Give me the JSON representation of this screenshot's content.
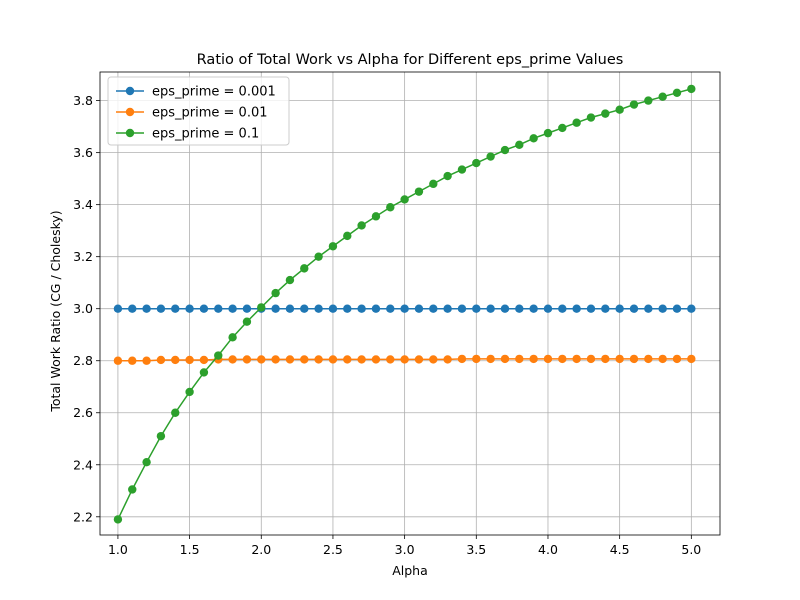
{
  "chart_data": {
    "type": "line",
    "title": "Ratio of Total Work vs Alpha for Different eps_prime Values",
    "xlabel": "Alpha",
    "ylabel": "Total Work Ratio (CG / Cholesky)",
    "xlim": [
      0.875,
      5.2
    ],
    "ylim": [
      2.13,
      3.91
    ],
    "xticks": [
      "1.0",
      "1.5",
      "2.0",
      "2.5",
      "3.0",
      "3.5",
      "4.0",
      "4.5",
      "5.0"
    ],
    "yticks": [
      "2.2",
      "2.4",
      "2.6",
      "2.8",
      "3.0",
      "3.2",
      "3.4",
      "3.6",
      "3.8"
    ],
    "grid": true,
    "legend_position": "top-left",
    "x": [
      1.0,
      1.1,
      1.2,
      1.3,
      1.4,
      1.5,
      1.6,
      1.7,
      1.8,
      1.9,
      2.0,
      2.1,
      2.2,
      2.3,
      2.4,
      2.5,
      2.6,
      2.7,
      2.8,
      2.9,
      3.0,
      3.1,
      3.2,
      3.3,
      3.4,
      3.5,
      3.6,
      3.7,
      3.8,
      3.9,
      4.0,
      4.1,
      4.2,
      4.3,
      4.4,
      4.5,
      4.6,
      4.7,
      4.8,
      4.9,
      5.0
    ],
    "series": [
      {
        "name": "eps_prime = 0.001",
        "color": "#1f77b4",
        "values": [
          3.0,
          3.0,
          3.0,
          3.0,
          3.0,
          3.0,
          3.0,
          3.0,
          3.0,
          3.0,
          3.0,
          3.0,
          3.0,
          3.0,
          3.0,
          3.0,
          3.0,
          3.0,
          3.0,
          3.0,
          3.0,
          3.0,
          3.0,
          3.0,
          3.0,
          3.0,
          3.0,
          3.0,
          3.0,
          3.0,
          3.0,
          3.0,
          3.0,
          3.0,
          3.0,
          3.0,
          3.0,
          3.0,
          3.0,
          3.0,
          3.0
        ]
      },
      {
        "name": "eps_prime = 0.01",
        "color": "#ff7f0e",
        "values": [
          2.8,
          2.8,
          2.8,
          2.803,
          2.803,
          2.803,
          2.803,
          2.805,
          2.805,
          2.805,
          2.805,
          2.805,
          2.805,
          2.805,
          2.805,
          2.805,
          2.805,
          2.805,
          2.805,
          2.805,
          2.805,
          2.805,
          2.805,
          2.805,
          2.807,
          2.807,
          2.807,
          2.807,
          2.807,
          2.807,
          2.807,
          2.807,
          2.807,
          2.807,
          2.807,
          2.807,
          2.807,
          2.807,
          2.807,
          2.807,
          2.807
        ]
      },
      {
        "name": "eps_prime = 0.1",
        "color": "#2ca02c",
        "values": [
          2.19,
          2.305,
          2.41,
          2.51,
          2.6,
          2.68,
          2.755,
          2.82,
          2.89,
          2.95,
          3.005,
          3.06,
          3.11,
          3.155,
          3.2,
          3.24,
          3.28,
          3.32,
          3.355,
          3.39,
          3.42,
          3.45,
          3.48,
          3.51,
          3.535,
          3.56,
          3.585,
          3.61,
          3.63,
          3.655,
          3.675,
          3.695,
          3.715,
          3.735,
          3.75,
          3.765,
          3.785,
          3.8,
          3.815,
          3.83,
          3.845
        ]
      }
    ]
  }
}
